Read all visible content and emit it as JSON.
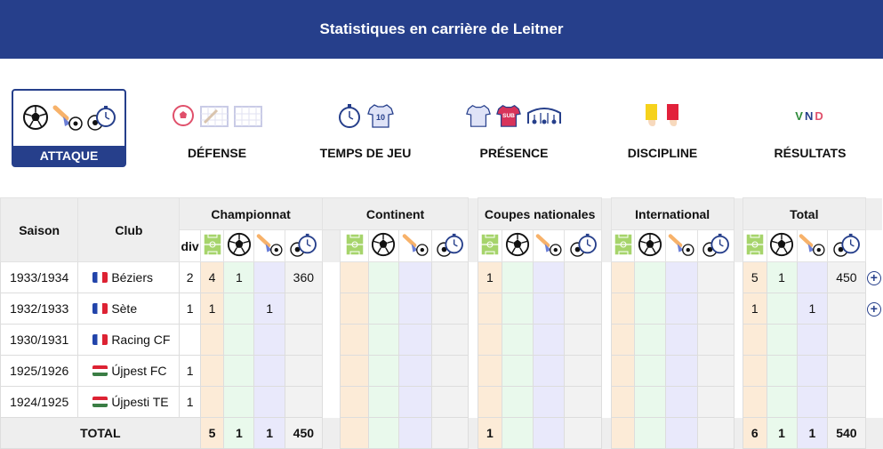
{
  "header": {
    "title": "Statistiques en carrière de Leitner"
  },
  "tabs": [
    {
      "label": "ATTAQUE",
      "active": true,
      "icons": [
        "ball-icon",
        "shot-icon",
        "ball-timer-icon"
      ]
    },
    {
      "label": "DÉFENSE",
      "active": false,
      "icons": [
        "ball-red-icon",
        "goal-net-icon",
        "goal-icon"
      ]
    },
    {
      "label": "TEMPS DE JEU",
      "active": false,
      "icons": [
        "stopwatch-icon",
        "jersey-10-icon"
      ]
    },
    {
      "label": "PRÉSENCE",
      "active": false,
      "icons": [
        "jersey-icon",
        "sub-jersey-icon",
        "bench-icon"
      ]
    },
    {
      "label": "DISCIPLINE",
      "active": false,
      "icons": [
        "yellow-card-icon",
        "red-card-icon"
      ]
    },
    {
      "label": "RÉSULTATS",
      "active": false,
      "icons": [
        "vnd-icon"
      ],
      "vnd": {
        "v": "V",
        "n": "N",
        "d": "D"
      }
    }
  ],
  "table": {
    "season_header": "Saison",
    "club_header": "Club",
    "div_header": "div",
    "groups": [
      "Championnat",
      "Continent",
      "Coupes nationales",
      "International",
      "Total"
    ],
    "rows": [
      {
        "season": "1933/1934",
        "club": "Béziers",
        "flag": "fr",
        "div": "2",
        "champ": [
          "4",
          "1",
          "",
          "360"
        ],
        "cont": [
          "",
          "",
          "",
          ""
        ],
        "coupes": [
          "1",
          "",
          "",
          ""
        ],
        "intl": [
          "",
          "",
          "",
          ""
        ],
        "total": [
          "5",
          "1",
          "",
          "450"
        ],
        "expand": true
      },
      {
        "season": "1932/1933",
        "club": "Sète",
        "flag": "fr",
        "div": "1",
        "champ": [
          "1",
          "",
          "1",
          ""
        ],
        "cont": [
          "",
          "",
          "",
          ""
        ],
        "coupes": [
          "",
          "",
          "",
          ""
        ],
        "intl": [
          "",
          "",
          "",
          ""
        ],
        "total": [
          "1",
          "",
          "1",
          ""
        ],
        "expand": true
      },
      {
        "season": "1930/1931",
        "club": "Racing CF",
        "flag": "fr",
        "div": "",
        "champ": [
          "",
          "",
          "",
          ""
        ],
        "cont": [
          "",
          "",
          "",
          ""
        ],
        "coupes": [
          "",
          "",
          "",
          ""
        ],
        "intl": [
          "",
          "",
          "",
          ""
        ],
        "total": [
          "",
          "",
          "",
          ""
        ],
        "expand": false
      },
      {
        "season": "1925/1926",
        "club": "Újpest FC",
        "flag": "hu",
        "div": "1",
        "champ": [
          "",
          "",
          "",
          ""
        ],
        "cont": [
          "",
          "",
          "",
          ""
        ],
        "coupes": [
          "",
          "",
          "",
          ""
        ],
        "intl": [
          "",
          "",
          "",
          ""
        ],
        "total": [
          "",
          "",
          "",
          ""
        ],
        "expand": false
      },
      {
        "season": "1924/1925",
        "club": "Újpesti TE",
        "flag": "hu",
        "div": "1",
        "champ": [
          "",
          "",
          "",
          ""
        ],
        "cont": [
          "",
          "",
          "",
          ""
        ],
        "coupes": [
          "",
          "",
          "",
          ""
        ],
        "intl": [
          "",
          "",
          "",
          ""
        ],
        "total": [
          "",
          "",
          "",
          ""
        ],
        "expand": false
      }
    ],
    "total_row": {
      "label": "TOTAL",
      "champ": [
        "5",
        "1",
        "1",
        "450"
      ],
      "cont": [
        "",
        "",
        "",
        ""
      ],
      "coupes": [
        "1",
        "",
        "",
        ""
      ],
      "intl": [
        "",
        "",
        "",
        ""
      ],
      "total": [
        "6",
        "1",
        "1",
        "540"
      ]
    },
    "expand_symbol": "+"
  },
  "colors": {
    "brand": "#263f8b",
    "orange": "#fcebd7",
    "green": "#e9f9ec",
    "purple": "#e9e9fb"
  }
}
